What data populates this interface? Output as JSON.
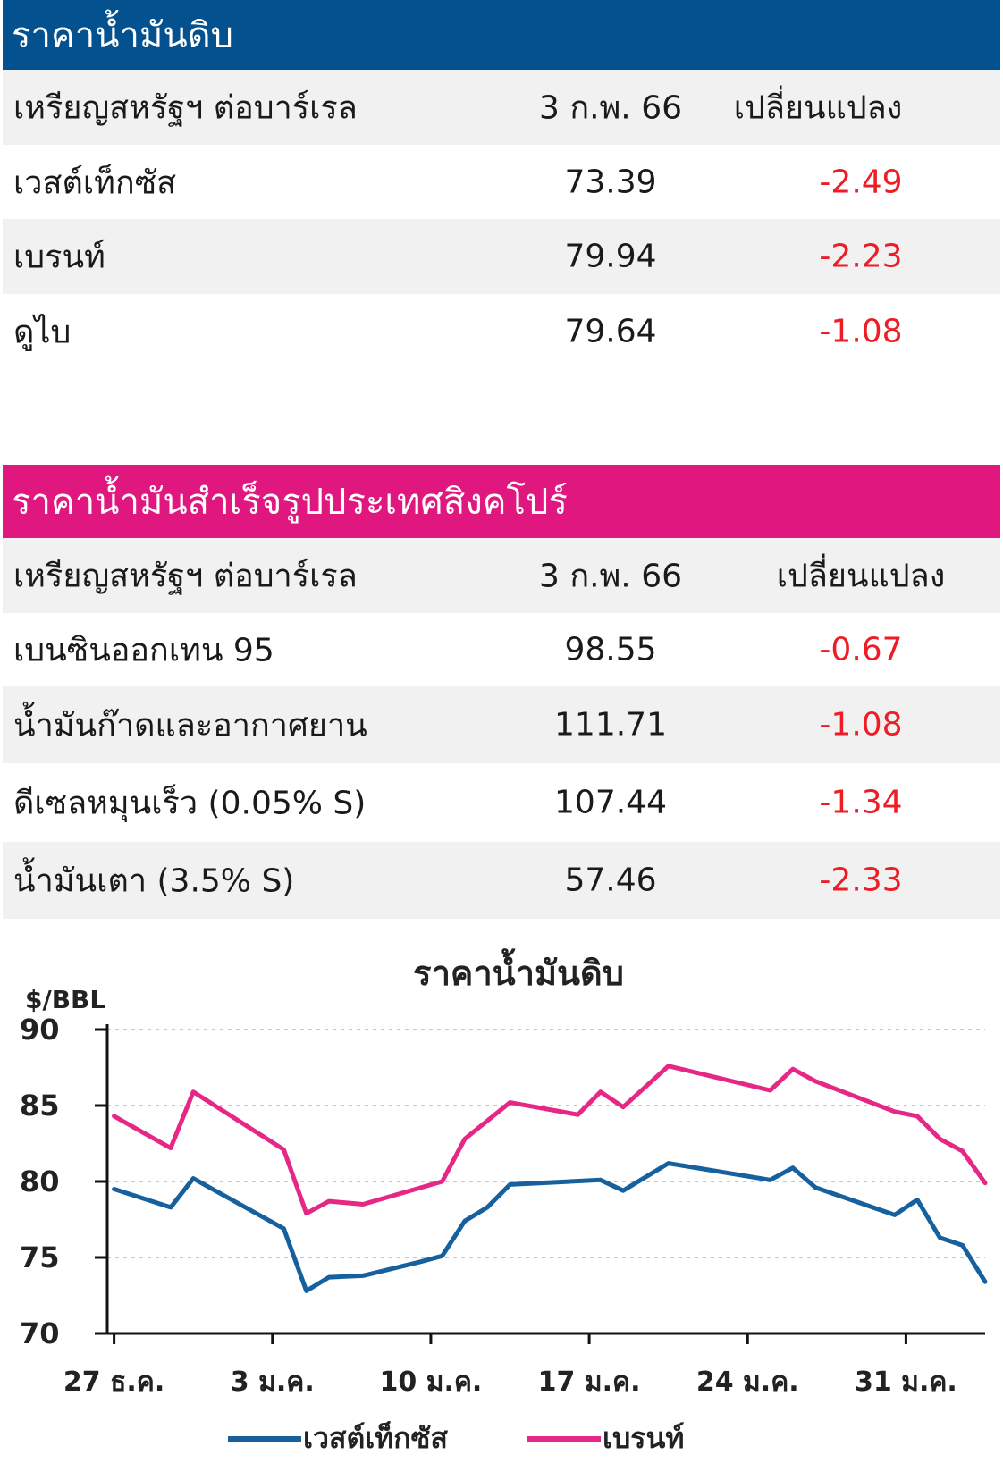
{
  "crude": {
    "title": "ราคาน้ำมันดิบ",
    "header": {
      "label": "เหรียญสหรัฐฯ ต่อบาร์เรล",
      "date": "3 ก.พ. 66",
      "change": "เปลี่ยนแปลง"
    },
    "rows": [
      {
        "name": "เวสต์เท็กซัส",
        "value": "73.39",
        "change": "-2.49"
      },
      {
        "name": "เบรนท์",
        "value": "79.94",
        "change": "-2.23"
      },
      {
        "name": "ดูไบ",
        "value": "79.64",
        "change": "-1.08"
      }
    ]
  },
  "refined": {
    "title": "ราคาน้ำมันสำเร็จรูปประเทศสิงคโปร์",
    "header": {
      "label": "เหรียญสหรัฐฯ ต่อบาร์เรล",
      "date": "3 ก.พ. 66",
      "change": "เปลี่ยนแปลง"
    },
    "rows": [
      {
        "name": "เบนซินออกเทน 95",
        "value": "98.55",
        "change": "-0.67"
      },
      {
        "name": "น้ำมันก๊าดและอากาศยาน",
        "value": "111.71",
        "change": "-1.08"
      },
      {
        "name": "ดีเซลหมุนเร็ว (0.05% S)",
        "value": "107.44",
        "change": "-1.34"
      },
      {
        "name": "น้ำมันเตา (3.5% S)",
        "value": "57.46",
        "change": "-2.33"
      }
    ]
  },
  "colors": {
    "crude_bar": "#04518f",
    "refined_bar": "#e0177f",
    "negative": "#ee1c25",
    "wti_line": "#17609e",
    "brent_line": "#e52886"
  },
  "chart_data": {
    "type": "line",
    "title": "ราคาน้ำมันดิบ",
    "ylabel": "$/BBL",
    "ylim": [
      70,
      90
    ],
    "yticks": [
      "90",
      "85",
      "80",
      "75",
      "70"
    ],
    "xticks": [
      "27 ธ.ค.",
      "3 ม.ค.",
      "10 ม.ค.",
      "17 ม.ค.",
      "24 ม.ค.",
      "31 ม.ค."
    ],
    "xtick_days": [
      0,
      7,
      14,
      21,
      28,
      35
    ],
    "xlim": [
      -0.3,
      38.5
    ],
    "grid": true,
    "legend": "bottom",
    "series": [
      {
        "name": "เวสต์เท็กซัส",
        "color": "#17609e",
        "days": [
          0,
          2.5,
          3.5,
          7.5,
          8.5,
          9.5,
          11,
          13.5,
          14.5,
          15.5,
          16.5,
          17.5,
          21.5,
          22.5,
          24.5,
          29,
          30,
          31,
          34.5,
          35.5,
          36.5,
          37.5,
          38.5
        ],
        "values": [
          79.5,
          78.3,
          80.2,
          76.9,
          72.8,
          73.7,
          73.8,
          74.7,
          75.1,
          77.4,
          78.3,
          79.8,
          80.1,
          79.4,
          81.2,
          80.1,
          80.9,
          79.6,
          77.8,
          78.8,
          76.3,
          75.8,
          73.4
        ]
      },
      {
        "name": "เบรนท์",
        "color": "#e52886",
        "days": [
          0,
          2.5,
          3.5,
          7.5,
          8.5,
          9.5,
          11,
          14.5,
          15.5,
          17.5,
          20.5,
          21.5,
          22.5,
          24.5,
          29,
          30,
          31,
          34.5,
          35.5,
          36.5,
          37.5,
          38.5
        ],
        "values": [
          84.3,
          82.2,
          85.9,
          82.1,
          77.9,
          78.7,
          78.5,
          80.0,
          82.8,
          85.2,
          84.4,
          85.9,
          84.9,
          87.6,
          86.0,
          87.4,
          86.6,
          84.6,
          84.3,
          82.8,
          82.0,
          79.9
        ]
      }
    ]
  }
}
